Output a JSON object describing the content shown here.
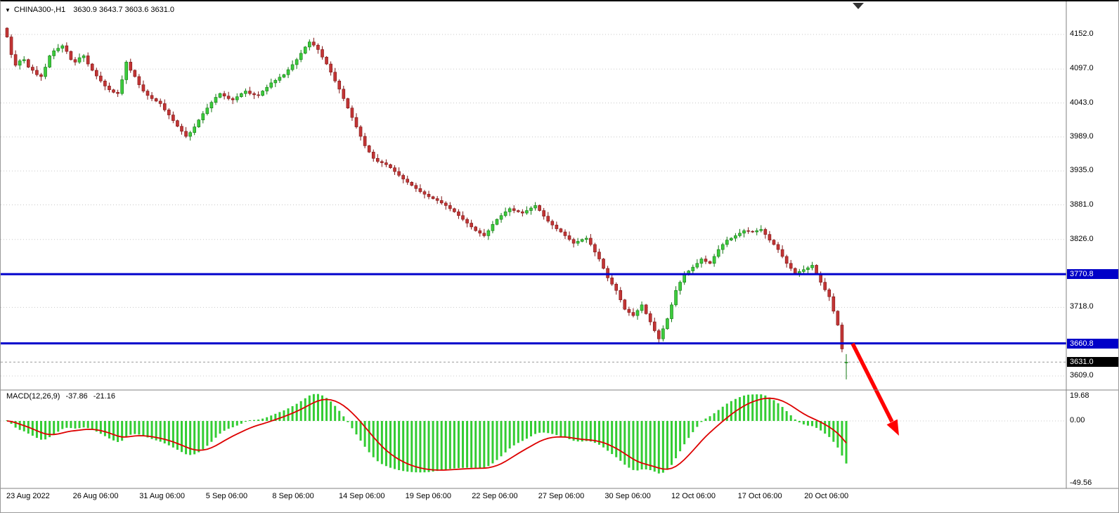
{
  "header": {
    "symbol": "CHINA300-,H1",
    "ohlc": "3630.9 3643.7 3603.6 3631.0"
  },
  "macd_panel": {
    "label": "MACD(12,26,9)",
    "value_main": "-37.86",
    "value_signal": "-21.16"
  },
  "colors": {
    "background": "#FFFFFF",
    "text": "#000000",
    "bull": "#3CCB3C",
    "bull_border": "#117711",
    "bear": "#C23535",
    "bear_border": "#7E1414",
    "hline": "#0000CC",
    "badge_blue": "#0000C8",
    "badge_current": "#000000",
    "histogram": "#33CC33",
    "signal_line": "#DD0000",
    "arrow": "#FF0000",
    "grid": "#C8C8C8",
    "separator": "#808080"
  },
  "chart_data": {
    "type": "candlestick",
    "symbol": "CHINA300-",
    "timeframe": "H1",
    "title": "CHINA300-,H1",
    "last_bar": {
      "open": 3630.9,
      "high": 3643.7,
      "low": 3603.6,
      "close": 3631.0
    },
    "current_price": 3631.0,
    "horizontal_lines": [
      3770.8,
      3660.8
    ],
    "price_ticks": [
      4152.0,
      4097.0,
      4043.0,
      3989.0,
      3935.0,
      3881.0,
      3826.0,
      3718.0,
      3609.0
    ],
    "time_ticks": [
      "23 Aug 2022",
      "26 Aug 06:00",
      "31 Aug 06:00",
      "5 Sep 06:00",
      "8 Sep 06:00",
      "14 Sep 06:00",
      "19 Sep 06:00",
      "22 Sep 06:00",
      "27 Sep 06:00",
      "30 Sep 06:00",
      "12 Oct 06:00",
      "17 Oct 06:00",
      "20 Oct 06:00"
    ],
    "closes": [
      4148,
      4120,
      4103,
      4110,
      4112,
      4100,
      4095,
      4088,
      4085,
      4100,
      4118,
      4126,
      4130,
      4134,
      4125,
      4112,
      4108,
      4115,
      4118,
      4105,
      4095,
      4086,
      4078,
      4070,
      4064,
      4060,
      4058,
      4080,
      4108,
      4095,
      4085,
      4072,
      4062,
      4055,
      4050,
      4046,
      4042,
      4032,
      4024,
      4015,
      4006,
      3998,
      3990,
      3996,
      4005,
      4016,
      4026,
      4035,
      4044,
      4052,
      4058,
      4054,
      4050,
      4048,
      4053,
      4058,
      4062,
      4058,
      4056,
      4055,
      4062,
      4068,
      4075,
      4079,
      4084,
      4088,
      4096,
      4104,
      4112,
      4122,
      4132,
      4140,
      4135,
      4128,
      4116,
      4105,
      4092,
      4078,
      4065,
      4050,
      4035,
      4020,
      4005,
      3990,
      3975,
      3965,
      3955,
      3950,
      3948,
      3945,
      3940,
      3934,
      3928,
      3922,
      3917,
      3912,
      3907,
      3902,
      3898,
      3894,
      3891,
      3888,
      3884,
      3880,
      3875,
      3870,
      3864,
      3858,
      3852,
      3846,
      3840,
      3836,
      3832,
      3840,
      3850,
      3858,
      3864,
      3870,
      3875,
      3872,
      3870,
      3868,
      3872,
      3876,
      3880,
      3872,
      3863,
      3855,
      3849,
      3843,
      3838,
      3832,
      3826,
      3820,
      3823,
      3826,
      3828,
      3818,
      3806,
      3795,
      3780,
      3765,
      3755,
      3745,
      3730,
      3715,
      3710,
      3705,
      3713,
      3722,
      3708,
      3695,
      3681,
      3668,
      3684,
      3700,
      3722,
      3745,
      3758,
      3770,
      3776,
      3782,
      3788,
      3795,
      3791,
      3788,
      3799,
      3810,
      3818,
      3825,
      3828,
      3832,
      3836,
      3840,
      3839,
      3838,
      3840,
      3842,
      3834,
      3825,
      3818,
      3810,
      3799,
      3788,
      3780,
      3772,
      3775,
      3778,
      3781,
      3785,
      3771,
      3758,
      3746,
      3735,
      3712,
      3690,
      3652,
      3631
    ],
    "indicator": {
      "type": "MACD",
      "params": [
        12,
        26,
        9
      ],
      "main_value": -37.86,
      "signal_value": -21.16,
      "axis_ticks": [
        19.68,
        0.0,
        -49.56
      ]
    },
    "annotations": [
      {
        "type": "arrow",
        "color": "#FF0000",
        "direction": "down-right",
        "meaning": "projected breakdown below support"
      }
    ]
  }
}
